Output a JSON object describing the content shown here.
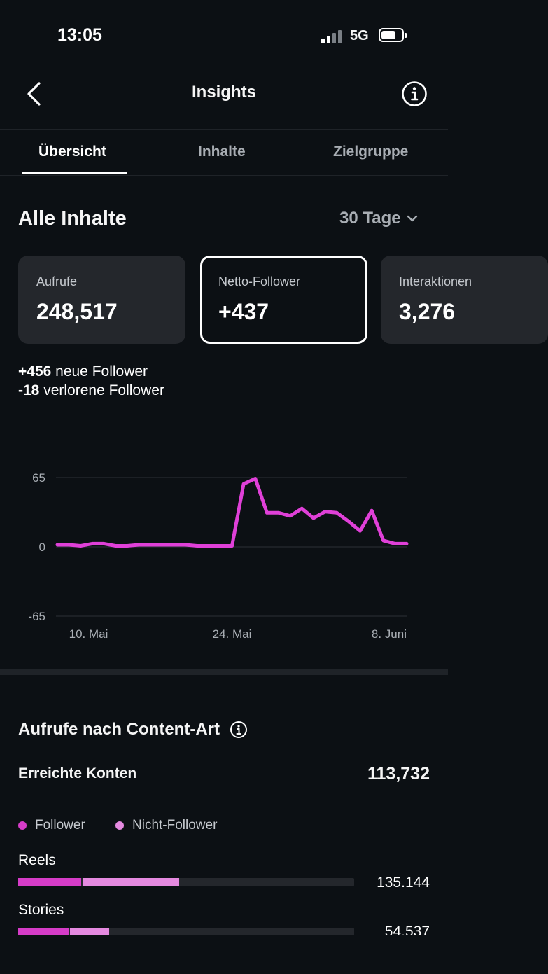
{
  "status_bar": {
    "time": "13:05",
    "network": "5G"
  },
  "header": {
    "title": "Insights"
  },
  "tabs": [
    {
      "label": "Übersicht",
      "active": true
    },
    {
      "label": "Inhalte",
      "active": false
    },
    {
      "label": "Zielgruppe",
      "active": false
    }
  ],
  "section": {
    "title": "Alle Inhalte",
    "period": "30 Tage"
  },
  "cards": [
    {
      "label": "Aufrufe",
      "value": "248,517"
    },
    {
      "label": "Netto-Follower",
      "value": "+437"
    },
    {
      "label": "Interaktionen",
      "value": "3,276"
    }
  ],
  "follower_stats": {
    "new_value": "+456",
    "new_label": " neue Follower",
    "lost_value": "-18",
    "lost_label": " verlorene Follower"
  },
  "chart_data": {
    "type": "line",
    "x": [
      "9. Mai",
      "10. Mai",
      "11. Mai",
      "12. Mai",
      "13. Mai",
      "14. Mai",
      "15. Mai",
      "16. Mai",
      "17. Mai",
      "18. Mai",
      "19. Mai",
      "20. Mai",
      "21. Mai",
      "22. Mai",
      "23. Mai",
      "24. Mai",
      "25. Mai",
      "26. Mai",
      "27. Mai",
      "28. Mai",
      "29. Mai",
      "30. Mai",
      "31. Mai",
      "1. Juni",
      "2. Juni",
      "3. Juni",
      "4. Juni",
      "5. Juni",
      "6. Juni",
      "7. Juni",
      "8. Juni"
    ],
    "series": [
      {
        "values": [
          2,
          2,
          1,
          3,
          3,
          1,
          1,
          2,
          2,
          2,
          2,
          2,
          1,
          1,
          1,
          1,
          59,
          64,
          32,
          32,
          29,
          36,
          27,
          33,
          32,
          24,
          15,
          34,
          6,
          3,
          3
        ],
        "color": "#e040d8"
      }
    ],
    "yticks": [
      "65",
      "0",
      "-65"
    ],
    "ylim": [
      -65,
      65
    ],
    "xticks": [
      "10. Mai",
      "24. Mai",
      "8. Juni"
    ],
    "grid": true
  },
  "content_type": {
    "title": "Aufrufe nach Content-Art",
    "reach_label": "Erreichte Konten",
    "reach_value": "113,732",
    "legend": [
      {
        "label": "Follower",
        "color": "#d63cc8"
      },
      {
        "label": "Nicht-Follower",
        "color": "#e58ae0"
      }
    ],
    "bars": [
      {
        "label": "Reels",
        "value": "135.144",
        "follower_fraction": 0.188,
        "nonfollower_fraction": 0.48
      },
      {
        "label": "Stories",
        "value": "54.537",
        "follower_fraction": 0.15,
        "nonfollower_fraction": 0.27
      }
    ]
  }
}
